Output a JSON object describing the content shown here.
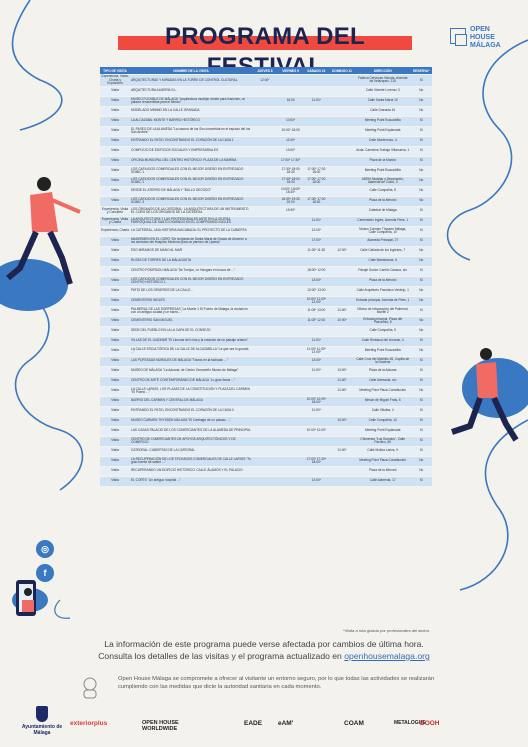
{
  "title": "PROGRAMA DEL FESTIVAL",
  "logo": {
    "line1": "OPEN",
    "line2": "HOUSE",
    "line3": "MÁLAGA"
  },
  "table": {
    "headers": [
      "TIPO DE VISITA",
      "NOMBRE DE LA VISITA",
      "JUEVES 8",
      "VIERNES 9",
      "SÁBADO 10",
      "DOMINGO 11",
      "DIRECCIÓN",
      "RESERVA*"
    ],
    "rows": [
      [
        "Experiencia, Visita, Charla y Exposición",
        "ARQUITECTURAS Y MIRADAS EN LA TORRE DE CONTROL CULTURAL",
        "12:00*",
        "",
        "",
        "",
        "Fábrica Cervezas Victoria, Avenida de Velázquez, 215",
        "Sí"
      ],
      [
        "Visita",
        "ARQUITECTURA ALMERÍA S.L.",
        "",
        "",
        "",
        "",
        "Calle Vicente Lorenzo 3",
        "No"
      ],
      [
        "Visita",
        "MUSEO FLEXIBLE DE MÁLAGA \"Arquitectura mudéjar dónde para Ilusiones, un palacio renacentista para el Museo\"",
        "",
        "16:00",
        "11:00*",
        "",
        "Calle Santa María 10",
        "No"
      ],
      [
        "Visita",
        "MODELADO MINIMO EN LA CALLE GRANADA",
        "",
        "",
        "",
        "",
        "Calle Granada 16",
        "No"
      ],
      [
        "Visita",
        "LA ALCAZABA: MONTE Y BARRIO HISTÓRICO",
        "",
        "10:00*",
        "",
        "",
        "Meeting Point Escuadrilla",
        "Sí"
      ],
      [
        "Visita",
        "EL PASEO DE LA ALAMEDA \"La casona de los Siro convertida en el espacio del los San Andrés\"",
        "",
        "10:00* 18:00",
        "",
        "",
        "Meeting Point Explanada",
        "Sí"
      ],
      [
        "Visita",
        "ENTRANDO EL PATIO, ENCONTRANDO EL CORAZÓN DE LA CASA 1",
        "",
        "11:00*",
        "",
        "",
        "Calle Monterroso, 4",
        "Sí"
      ],
      [
        "Visita",
        "COMPLEJO DE EDIFICIOS SOCIALES Y EMPRESARIALES",
        "",
        "13:00*",
        "",
        "",
        "Avda. Carretera Trabajo Villanueva, 1",
        "Sí"
      ],
      [
        "Visita",
        "OFICINA MUNICIPAL DEL CENTRO HISTÓRICO: PLAZA DE LA MARINA",
        "",
        "17:00* 17:30*",
        "",
        "",
        "Plaza de la Marina",
        "Sí"
      ],
      [
        "Visita",
        "LOS CAFILIDOS COMERCIALES CON EL MEJOR DISEÑO EN ENTREGADO SOMIC 1",
        "",
        "17:30* 18:00 18:30",
        "17:00* 17:30 18:00",
        "",
        "Meeting Point Escuadrilla",
        "No"
      ],
      [
        "Visita",
        "LOS CAFILIDOS COMERCIALES CON EL MEJOR DISEÑO EN ENTREGADO SOMIC 2",
        "",
        "17:30* 18:00 18:30",
        "17:00* 17:30 18:00",
        "",
        "ADEM Mudéjar y Decoración, Alameda de Colón, 3",
        "No"
      ],
      [
        "Visita",
        "DESDE EL ATERRO DE MÁLAGA Y \"BULLO DECODO\"",
        "",
        "10:00* 18:00* 18:30*",
        "",
        "",
        "Calle Compañía, 5",
        "No"
      ],
      [
        "Visita",
        "LOS CAFILIDOS COMERCIALES CON EL MEJOR DISEÑO EN ENTREGADO SOMIC 3",
        "",
        "18:30* 19:30 20:00",
        "17:00* 17:30 18:00",
        "",
        "Plaza de la Merced",
        "No"
      ],
      [
        "Experiencia, Visita y Concierto",
        "LOS ÓRGANOS DE LA CATEDRAL: LA ARQUITECTURA DE UN INSTRUMENTO. EL CORO DE LOS ÓRGANOS DE LA CATEDRAL",
        "",
        "19:30*",
        "",
        "",
        "Catedral de Málaga",
        "Sí"
      ],
      [
        "Experiencia, Visita y Charla",
        "LA ARQUITECTURA Y LAS PROFESIONALES ANTE EN LA IGLESIA PARROQUIAL DE SANTO DOMINGO EN EL COMPROMISO INGLÉS",
        "",
        "",
        "11:00*",
        "",
        "Cementerio Inglés, Avenida Pries, 1",
        "Sí"
      ],
      [
        "Experiencia, Charla",
        "LA CATEDRAL, UNA HISTORIA INACABADA: EL PROYECTO DE LA CUBIERTA",
        "",
        "",
        "12:00*",
        "",
        "Museo Carmen Thyssen Málaga, Calle Compañía, 10",
        "Sí"
      ],
      [
        "Visita",
        "MADERMEN EN EL CORO \"De la Iglesia de Santa María de Gracia de Almerón a los símbolos del Hospicio Moderno para un párroco de Lipasto\"",
        "",
        "",
        "17:00*",
        "",
        "Alameda Principal, 27",
        "Sí"
      ],
      [
        "Visita",
        "ESO MIRAMOS DE MANO AL MAR",
        "",
        "",
        "11:00* 11:30",
        "12:00*",
        "Calle Cañada de los Ingleses, 7",
        "No"
      ],
      [
        "Visita",
        "RUTAS DE TORRES DE LA MÁLAGUETA",
        "",
        "",
        "",
        "",
        "Calle Maestranza, 6",
        "No"
      ],
      [
        "Visita",
        "CENTRO POMPIDOU MÁLAGA \"De Torrijos, Le Hangars en busca de ...\"",
        "",
        "",
        "18:00* 12:00",
        "",
        "Pasaje Doctor Carrillo Casaux, s/n",
        "Sí"
      ],
      [
        "Visita",
        "LOS CAFILIDOS COMERCIALES CON EL MEJOR DISEÑO EN ENTREGADO CENTRO HISTÓRICO 1",
        "",
        "",
        "13:00*",
        "",
        "Plaza de la Merced",
        "Sí"
      ],
      [
        "Visita",
        "PATIO DE LOS GENEROS DE LA CALLE...",
        "",
        "",
        "12:00* 13:00",
        "",
        "Calle Arquitecto Francisco Verdejo, 1",
        "No"
      ],
      [
        "Visita",
        "CEMENTERIO INGLÉS",
        "",
        "",
        "10:00* 11:00* 12:00*",
        "",
        "Entrada principal, Avenida de Pries, 1",
        "No"
      ],
      [
        "Visita",
        "PALMERAL DE LAS SORPRESAS \"La Muelle 1 El Puerto de Málaga, la ciudad en con un antiguo ciudad y un barrio...\"",
        "",
        "",
        "11:00* 13:00",
        "11:00*",
        "Oficina de Información del Palmeral, Muelle 2",
        "Sí"
      ],
      [
        "Visita",
        "CEMENTERIO SAN MIGUEL",
        "",
        "",
        "11:00* 12:30",
        "10:00*",
        "Entrada principal, Plaza del Patrocinio, 8",
        "No"
      ],
      [
        "Visita",
        "SEDE DEL PUEBLO EN LA LA CAPA DE EL CONSEJO",
        "",
        "",
        "",
        "",
        "Calle Compañía, 5",
        "No"
      ],
      [
        "Visita",
        "VILLAS DE EL LIMONAR \"El Limonar del Lima y la creación de un paisaje urbano\"",
        "",
        "",
        "11:00*",
        "",
        "Calle Rimbaud del Limonar, 4",
        "Sí"
      ],
      [
        "Visita",
        "LA CALLE ESCULTÓRICA DE LA CALLE DE ALCAZABILLA \"La que ves lo guarda ...\"",
        "",
        "",
        "11:00* 11:30* 12:00*",
        "",
        "Meeting Point Escuadrilla",
        "No"
      ],
      [
        "Visita",
        "LAS PORTADAS MURALES DE MÁLAGA \"Trazos en la fachada: ...\"",
        "",
        "",
        "13:00*",
        "",
        "Calle Cruz del Molinillo 26, Capilla de la Sostena",
        "Sí"
      ],
      [
        "Visita",
        "MUSEO DE MÁLAGA \"La Aduana: de Centro Ormaneño Museo de Málaga\"",
        "",
        "",
        "11:00*",
        "13:00*",
        "Plaza de la Aduana",
        "Sí"
      ],
      [
        "Visita",
        "CENTRO DE ARTE CONTEMPORÁNEO DE MÁLAGA \"Lo gran llama ...\"",
        "",
        "",
        "",
        "11:00*",
        "Calle Alemania, s/n",
        "Sí"
      ],
      [
        "Visita",
        "LA CALLE LARIOS, LOS PLAZAS DE LA CONSTITUCIÓN Y PLAZA DEL CARMEN \"El Puerto ...\"",
        "",
        "",
        "",
        "11:00*",
        "Meeting Point Plaza Constitución",
        "No"
      ],
      [
        "Visita",
        "BARRIO DEL CARMEN Y CENTRAL DE MÁLAGA",
        "",
        "",
        "10:00* 12:00* 18:00*",
        "",
        "Mesón de Miguel Frías, 6",
        "Sí"
      ],
      [
        "Visita",
        "ENTRANDO EL PATIO, ENCONTRANDO EL CORAZÓN DE LA CASA 3",
        "",
        "",
        "11:00*",
        "",
        "Calle Villalba, 4",
        "Sí"
      ],
      [
        "Visita",
        "MUSEO CARMEN THYSSEN MÁLAGA \"El Carthage de un palacio ...\"",
        "",
        "",
        "",
        "10:00*",
        "Calle Compañía, 10",
        "Sí"
      ],
      [
        "Visita",
        "LAS CASAS PALACIO DE LOS COMERCIANTES DE LA ALAMEDA DE PRINCIPAL",
        "",
        "",
        "10:00* 12:00*",
        "",
        "Meeting Point Explanada",
        "Sí"
      ],
      [
        "Visita",
        "CENTRO DE COMERCIANTES DE APOYOS ARQUITECTÓNICOS Y DE COMERCIO",
        "",
        "",
        "",
        "",
        "Chimenea \"Los Guindos\", Calle Pacífico, 80",
        "Sí"
      ],
      [
        "Visita",
        "CATEDRAL: CUBIERTAS DE LA CATEDRAL",
        "",
        "",
        "",
        "11:00*",
        "Calle Molina Larios, 9",
        "Sí"
      ],
      [
        "Visita",
        "LA RECUPERACIÓN DE LOS TECHADOS COMERCIALES DE CALLE LARIOS \"Tu gran fuente de sastre ...\"",
        "",
        "",
        "17:00* 17:30* 18:00*",
        "",
        "Meeting Point Plaza Constitución",
        "No"
      ],
      [
        "Visita",
        "RECUPERANDO UN EDIFICIO HISTÓRICO: CALLE ÁLAMOS Y EL PALACIO",
        "",
        "",
        "",
        "",
        "Plaza de la Merced",
        "No"
      ],
      [
        "Visita",
        "EL CORTE \"Un antiguo hospital ...\"",
        "",
        "",
        "12:00*",
        "",
        "Calle Alameda, 17",
        "Sí"
      ]
    ]
  },
  "note": "*Visita a ruta guiada por profesionales del sector.",
  "info": {
    "line1": "La información de este programa puede verse afectada por cambios de última hora.",
    "line2_prefix": "Consulta los detalles de las visitas y el programa actualizado en ",
    "link": "openhousemalaga.org"
  },
  "safety": "Open House Málaga se compromete a ofrecer al visitante un entorno seguro, por lo que todas las actividades se realizarán cumpliendo con las medidas que dicte la autoridad sanitaria en cada momento.",
  "footer": {
    "ayuntamiento": "Ayuntamiento de Málaga",
    "logos": [
      "exteriorplus",
      "OPEN HOUSE WORLDWIDE",
      "EADE",
      "eAM'",
      "COAM",
      "METALOGUE",
      "DOOH"
    ]
  },
  "social": {
    "icons": [
      "instagram-icon",
      "facebook-icon"
    ]
  },
  "colors": {
    "accent": "#f0493f",
    "primary": "#3a78c2",
    "navy": "#1e2450",
    "row_dark": "#cfe2f4",
    "row_light": "#e6eef7"
  }
}
